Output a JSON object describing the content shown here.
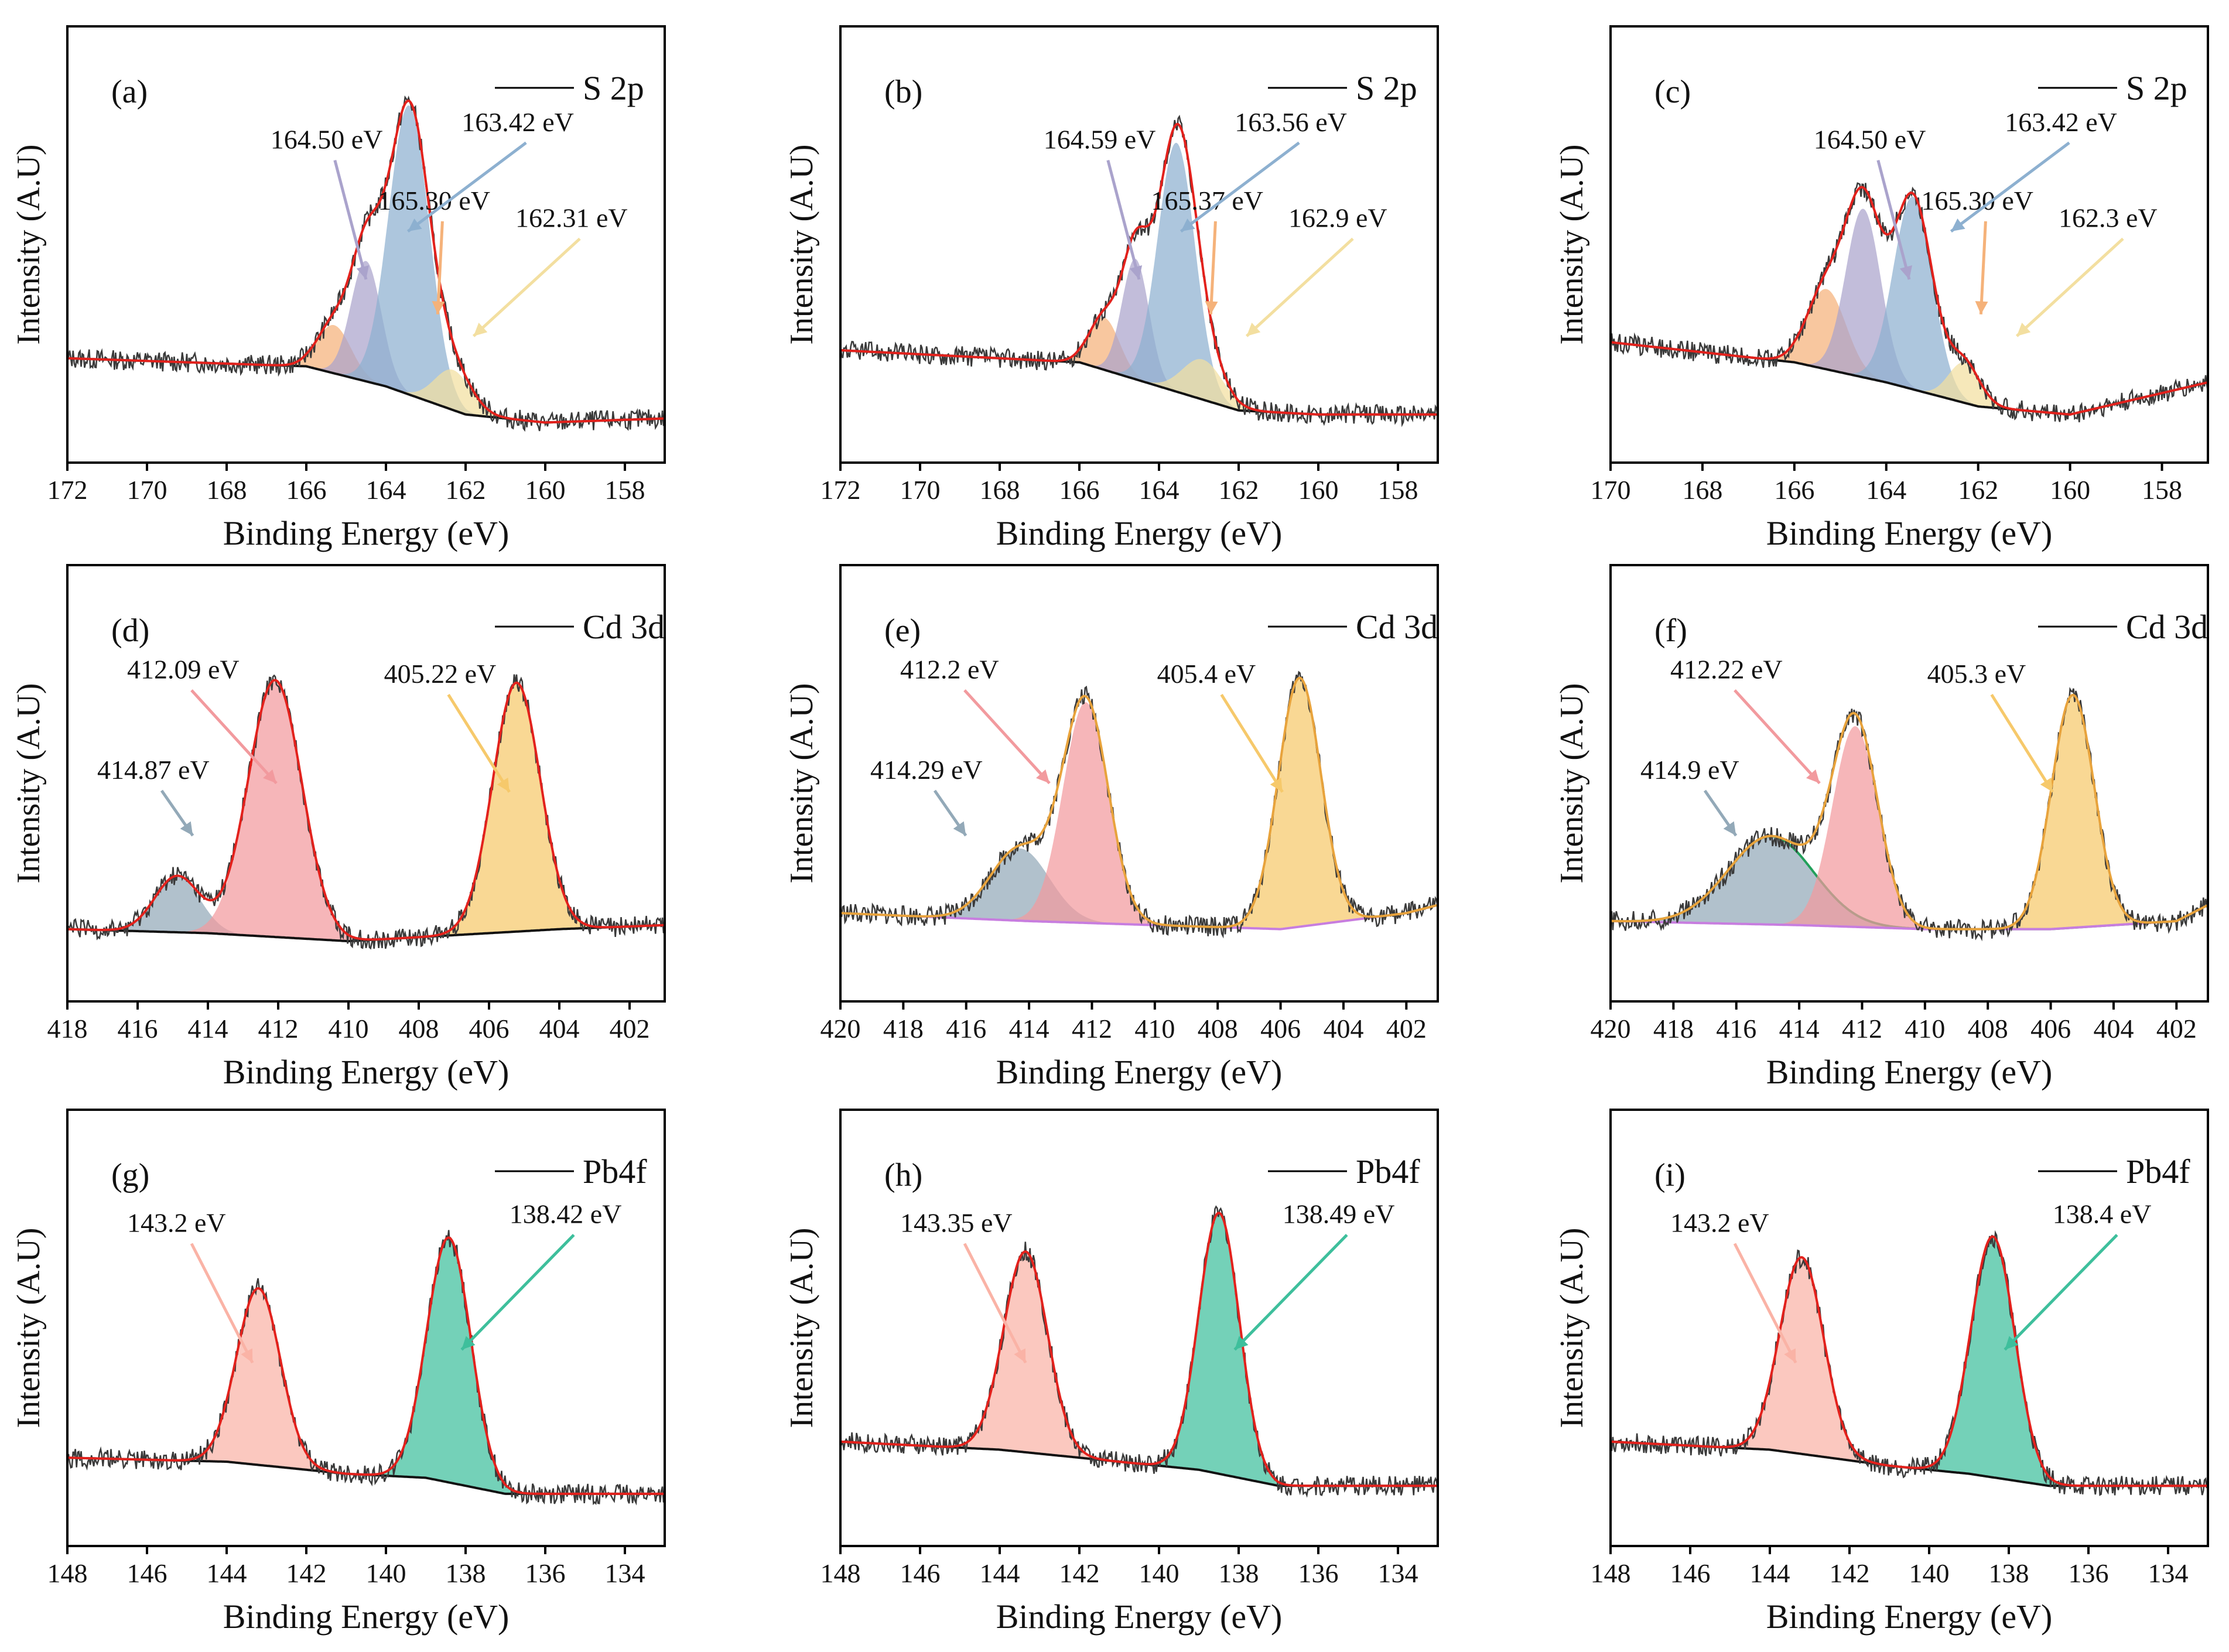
{
  "colors": {
    "raw": "#3a3a3a",
    "envelope": "#e3211c",
    "envelope_alt": "#e8a33c",
    "background": "#111111",
    "background_alt": "#c77ddf",
    "orange": "#f5b27a",
    "lavender": "#aaa3cc",
    "blue": "#8db0d0",
    "yellow": "#f3dfa0",
    "slate": "#93a9b8",
    "pink": "#f29a9e",
    "gold": "#f6c96b",
    "green_line": "#22a05a",
    "salmon": "#fab3a6",
    "teal": "#3ebf9c"
  },
  "chart_data": [
    {
      "type": "line",
      "panel": "(a)",
      "legend": "S 2p",
      "xlabel": "Binding Energy (eV)",
      "ylabel": "Intensity (A.U)",
      "xlim": [
        172,
        157
      ],
      "xticks": [
        172,
        170,
        168,
        166,
        164,
        162,
        160,
        158
      ],
      "baseline": {
        "x": [
          172,
          166,
          164,
          162,
          160,
          157
        ],
        "y": [
          0.26,
          0.24,
          0.19,
          0.12,
          0.1,
          0.11
        ]
      },
      "peaks": [
        {
          "center": 165.3,
          "height": 0.12,
          "fwhm": 1.0,
          "color": "orange",
          "arrow": "orange"
        },
        {
          "center": 164.5,
          "height": 0.3,
          "fwhm": 0.9,
          "color": "lavender",
          "arrow": "lavender"
        },
        {
          "center": 163.42,
          "height": 0.72,
          "fwhm": 1.2,
          "color": "blue",
          "arrow": "blue"
        },
        {
          "center": 162.31,
          "height": 0.1,
          "fwhm": 1.1,
          "color": "yellow",
          "arrow": "yellow"
        }
      ],
      "annotations": [
        "165.30 eV",
        "164.50 eV",
        "163.42 eV",
        "162.31 eV"
      ],
      "envelope_color": "envelope",
      "background_color": "background"
    },
    {
      "type": "line",
      "panel": "(b)",
      "legend": "S 2p",
      "xlabel": "Binding Energy (eV)",
      "ylabel": "Intensity (A.U)",
      "xlim": [
        172,
        157
      ],
      "xticks": [
        172,
        170,
        168,
        166,
        164,
        162,
        160,
        158
      ],
      "baseline": {
        "x": [
          172,
          166,
          164,
          162,
          160,
          157
        ],
        "y": [
          0.28,
          0.25,
          0.19,
          0.13,
          0.12,
          0.12
        ]
      },
      "peaks": [
        {
          "center": 165.37,
          "height": 0.13,
          "fwhm": 0.9,
          "color": "orange",
          "arrow": "orange"
        },
        {
          "center": 164.59,
          "height": 0.3,
          "fwhm": 0.8,
          "color": "lavender",
          "arrow": "lavender"
        },
        {
          "center": 163.56,
          "height": 0.62,
          "fwhm": 1.1,
          "color": "blue",
          "arrow": "blue"
        },
        {
          "center": 162.9,
          "height": 0.1,
          "fwhm": 1.2,
          "color": "yellow",
          "arrow": "yellow"
        }
      ],
      "annotations": [
        "165.37 eV",
        "164.59 eV",
        "163.56 eV",
        "162.9 eV"
      ],
      "envelope_color": "envelope",
      "background_color": "background"
    },
    {
      "type": "line",
      "panel": "(c)",
      "legend": "S 2p",
      "xlabel": "Binding Energy (eV)",
      "ylabel": "Intensity (A.U)",
      "xlim": [
        170,
        157
      ],
      "xticks": [
        170,
        168,
        166,
        164,
        162,
        160,
        158
      ],
      "baseline": {
        "x": [
          170,
          166,
          164,
          162,
          160,
          157
        ],
        "y": [
          0.3,
          0.25,
          0.2,
          0.14,
          0.12,
          0.2
        ]
      },
      "peaks": [
        {
          "center": 165.3,
          "height": 0.2,
          "fwhm": 1.0,
          "color": "orange",
          "arrow": "orange"
        },
        {
          "center": 164.5,
          "height": 0.42,
          "fwhm": 0.9,
          "color": "lavender",
          "arrow": "lavender"
        },
        {
          "center": 163.42,
          "height": 0.48,
          "fwhm": 1.0,
          "color": "blue",
          "arrow": "blue"
        },
        {
          "center": 162.3,
          "height": 0.1,
          "fwhm": 0.8,
          "color": "yellow",
          "arrow": "yellow"
        }
      ],
      "annotations": [
        "165.30 eV",
        "164.50 eV",
        "163.42 eV",
        "162.3 eV"
      ],
      "envelope_color": "envelope",
      "background_color": "background"
    },
    {
      "type": "line",
      "panel": "(d)",
      "legend": "Cd 3d",
      "xlabel": "Binding Energy (eV)",
      "ylabel": "Intensity (A.U)",
      "xlim": [
        418,
        401
      ],
      "xticks": [
        418,
        416,
        414,
        412,
        410,
        408,
        406,
        404,
        402
      ],
      "baseline": {
        "x": [
          418,
          414,
          412,
          410,
          408,
          406,
          404,
          401
        ],
        "y": [
          0.18,
          0.17,
          0.16,
          0.15,
          0.16,
          0.17,
          0.18,
          0.19
        ]
      },
      "peaks": [
        {
          "center": 414.87,
          "height": 0.14,
          "fwhm": 1.5,
          "color": "slate",
          "arrow": "slate"
        },
        {
          "center": 412.09,
          "height": 0.64,
          "fwhm": 1.8,
          "color": "pink",
          "arrow": "pink"
        },
        {
          "center": 405.22,
          "height": 0.62,
          "fwhm": 1.6,
          "color": "gold",
          "arrow": "gold"
        }
      ],
      "annotations": [
        "414.87 eV",
        "412.09 eV",
        "405.22 eV"
      ],
      "envelope_color": "envelope",
      "background_color": "background"
    },
    {
      "type": "line",
      "panel": "(e)",
      "legend": "Cd 3d",
      "xlabel": "Binding Energy (eV)",
      "ylabel": "Intensity (A.U)",
      "xlim": [
        420,
        401
      ],
      "xticks": [
        420,
        418,
        416,
        414,
        412,
        410,
        408,
        406,
        404,
        402
      ],
      "baseline": {
        "x": [
          420,
          414,
          410,
          406,
          402,
          401
        ],
        "y": [
          0.22,
          0.2,
          0.19,
          0.18,
          0.22,
          0.24
        ]
      },
      "peaks": [
        {
          "center": 414.29,
          "height": 0.18,
          "fwhm": 2.2,
          "color": "slate",
          "arrow": "slate"
        },
        {
          "center": 412.2,
          "height": 0.55,
          "fwhm": 1.7,
          "color": "pink",
          "arrow": "pink"
        },
        {
          "center": 405.4,
          "height": 0.62,
          "fwhm": 1.6,
          "color": "gold",
          "arrow": "gold"
        }
      ],
      "annotations": [
        "414.29 eV",
        "412.2 eV",
        "405.4 eV"
      ],
      "envelope_color": "envelope_alt",
      "background_color": "background_alt"
    },
    {
      "type": "line",
      "panel": "(f)",
      "legend": "Cd 3d",
      "xlabel": "Binding Energy (eV)",
      "ylabel": "Intensity (A.U)",
      "xlim": [
        420,
        401
      ],
      "xticks": [
        420,
        418,
        416,
        414,
        412,
        410,
        408,
        406,
        404,
        402
      ],
      "baseline": {
        "x": [
          420,
          414,
          410,
          406,
          402,
          401
        ],
        "y": [
          0.2,
          0.19,
          0.18,
          0.18,
          0.2,
          0.24
        ]
      },
      "peaks": [
        {
          "center": 414.9,
          "height": 0.22,
          "fwhm": 3.2,
          "color": "slate",
          "arrow": "slate",
          "outline": "green_line"
        },
        {
          "center": 412.22,
          "height": 0.5,
          "fwhm": 1.7,
          "color": "pink",
          "arrow": "pink"
        },
        {
          "center": 405.3,
          "height": 0.58,
          "fwhm": 1.6,
          "color": "gold",
          "arrow": "gold"
        }
      ],
      "annotations": [
        "414.9 eV",
        "412.22 eV",
        "405.3 eV"
      ],
      "envelope_color": "envelope_alt",
      "background_color": "background_alt"
    },
    {
      "type": "line",
      "panel": "(g)",
      "legend": "Pb4f",
      "xlabel": "Binding Energy (eV)",
      "ylabel": "Intensity (A.U)",
      "xlim": [
        148,
        133
      ],
      "xticks": [
        148,
        146,
        144,
        142,
        140,
        138,
        136,
        134
      ],
      "baseline": {
        "x": [
          148,
          144,
          141,
          139,
          137,
          133
        ],
        "y": [
          0.22,
          0.21,
          0.18,
          0.17,
          0.13,
          0.13
        ]
      },
      "peaks": [
        {
          "center": 143.2,
          "height": 0.44,
          "fwhm": 1.3,
          "color": "salmon",
          "arrow": "salmon"
        },
        {
          "center": 138.42,
          "height": 0.61,
          "fwhm": 1.3,
          "color": "teal",
          "arrow": "teal"
        }
      ],
      "annotations": [
        "143.2 eV",
        "138.42 eV"
      ],
      "envelope_color": "envelope",
      "background_color": "background"
    },
    {
      "type": "line",
      "panel": "(h)",
      "legend": "Pb4f",
      "xlabel": "Binding Energy (eV)",
      "ylabel": "Intensity (A.U)",
      "xlim": [
        148,
        133
      ],
      "xticks": [
        148,
        146,
        144,
        142,
        140,
        138,
        136,
        134
      ],
      "baseline": {
        "x": [
          148,
          144,
          141,
          139,
          137,
          133
        ],
        "y": [
          0.26,
          0.24,
          0.21,
          0.19,
          0.15,
          0.15
        ]
      },
      "peaks": [
        {
          "center": 143.35,
          "height": 0.5,
          "fwhm": 1.3,
          "color": "salmon",
          "arrow": "salmon"
        },
        {
          "center": 138.49,
          "height": 0.65,
          "fwhm": 1.2,
          "color": "teal",
          "arrow": "teal"
        }
      ],
      "annotations": [
        "143.35 eV",
        "138.49 eV"
      ],
      "envelope_color": "envelope",
      "background_color": "background"
    },
    {
      "type": "line",
      "panel": "(i)",
      "legend": "Pb4f",
      "xlabel": "Binding Energy (eV)",
      "ylabel": "Intensity (A.U)",
      "xlim": [
        148,
        133
      ],
      "xticks": [
        148,
        146,
        144,
        142,
        140,
        138,
        136,
        134
      ],
      "baseline": {
        "x": [
          148,
          144,
          141,
          139,
          137,
          133
        ],
        "y": [
          0.26,
          0.24,
          0.2,
          0.18,
          0.15,
          0.15
        ]
      },
      "peaks": [
        {
          "center": 143.2,
          "height": 0.49,
          "fwhm": 1.3,
          "color": "salmon",
          "arrow": "salmon"
        },
        {
          "center": 138.4,
          "height": 0.6,
          "fwhm": 1.3,
          "color": "teal",
          "arrow": "teal"
        }
      ],
      "annotations": [
        "143.2 eV",
        "138.4 eV"
      ],
      "envelope_color": "envelope",
      "background_color": "background"
    }
  ]
}
